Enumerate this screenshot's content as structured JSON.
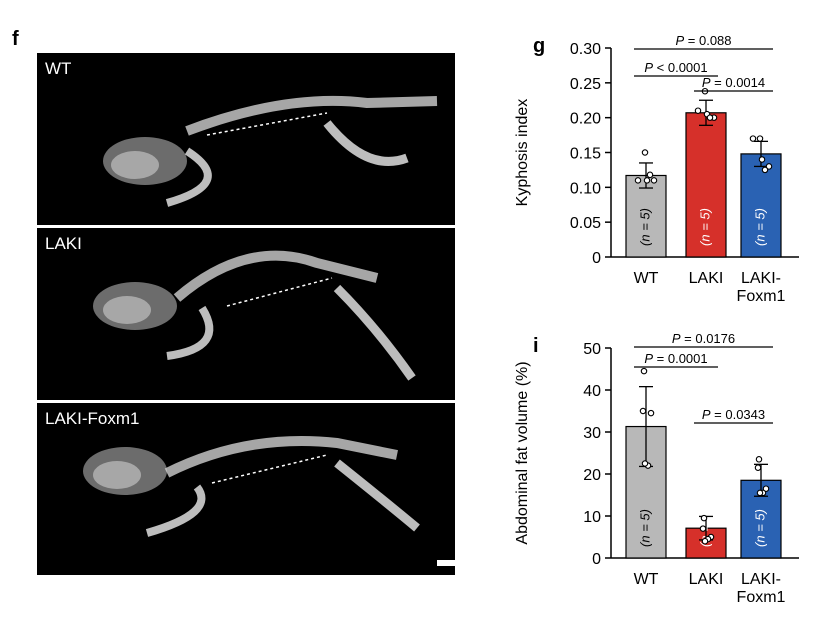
{
  "panel_f": {
    "letter": "f",
    "images": [
      {
        "label": "WT"
      },
      {
        "label": "LAKI"
      },
      {
        "label": "LAKI-Foxm1"
      }
    ]
  },
  "chart_data": [
    {
      "panel": "g",
      "type": "bar",
      "ylabel": "Kyphosis index",
      "ylim": [
        0,
        0.3
      ],
      "yticks": [
        "0",
        "0.05",
        "0.10",
        "0.15",
        "0.20",
        "0.25",
        "0.30"
      ],
      "yticks_values": [
        0,
        0.05,
        0.1,
        0.15,
        0.2,
        0.25,
        0.3
      ],
      "categories": [
        "WT",
        "LAKI",
        "LAKI-Foxm1"
      ],
      "category_lines": [
        [
          "WT"
        ],
        [
          "LAKI"
        ],
        [
          "LAKI-",
          "Foxm1"
        ]
      ],
      "values": [
        0.117,
        0.207,
        0.148
      ],
      "errors": [
        0.018,
        0.018,
        0.018
      ],
      "points": [
        [
          0.15,
          0.11,
          0.11,
          0.11,
          0.118
        ],
        [
          0.238,
          0.21,
          0.205,
          0.2,
          0.2
        ],
        [
          0.17,
          0.17,
          0.14,
          0.13,
          0.125
        ]
      ],
      "n_labels": [
        "(n = 5)",
        "(n = 5)",
        "(n = 5)"
      ],
      "colors": [
        "#b8b8b8",
        "#d6302a",
        "#2a62b3"
      ],
      "comparisons": [
        {
          "from": 0,
          "to": 2,
          "label": "P = 0.088"
        },
        {
          "from": 0,
          "to": 1,
          "label": "P < 0.0001"
        },
        {
          "from": 1,
          "to": 2,
          "label": "P = 0.0014"
        }
      ]
    },
    {
      "panel": "i",
      "type": "bar",
      "ylabel": "Abdominal fat volume (%)",
      "ylim": [
        0,
        50
      ],
      "yticks": [
        "0",
        "10",
        "20",
        "30",
        "40",
        "50"
      ],
      "yticks_values": [
        0,
        10,
        20,
        30,
        40,
        50
      ],
      "categories": [
        "WT",
        "LAKI",
        "LAKI-Foxm1"
      ],
      "category_lines": [
        [
          "WT"
        ],
        [
          "LAKI"
        ],
        [
          "LAKI-",
          "Foxm1"
        ]
      ],
      "values": [
        31.3,
        7.1,
        18.5
      ],
      "errors": [
        9.5,
        2.8,
        3.8
      ],
      "points": [
        [
          44.5,
          35.0,
          34.5,
          22.0,
          22.5
        ],
        [
          9.5,
          7.0,
          5.0,
          4.5,
          4.0
        ],
        [
          23.5,
          21.5,
          16.5,
          15.5,
          15.5
        ]
      ],
      "n_labels": [
        "(n = 5)",
        "(n = 5)",
        "(n = 5)"
      ],
      "colors": [
        "#b8b8b8",
        "#d6302a",
        "#2a62b3"
      ],
      "comparisons": [
        {
          "from": 0,
          "to": 2,
          "label": "P = 0.0176"
        },
        {
          "from": 0,
          "to": 1,
          "label": "P = 0.0001"
        },
        {
          "from": 1,
          "to": 2,
          "label": "P = 0.0343"
        }
      ]
    }
  ]
}
